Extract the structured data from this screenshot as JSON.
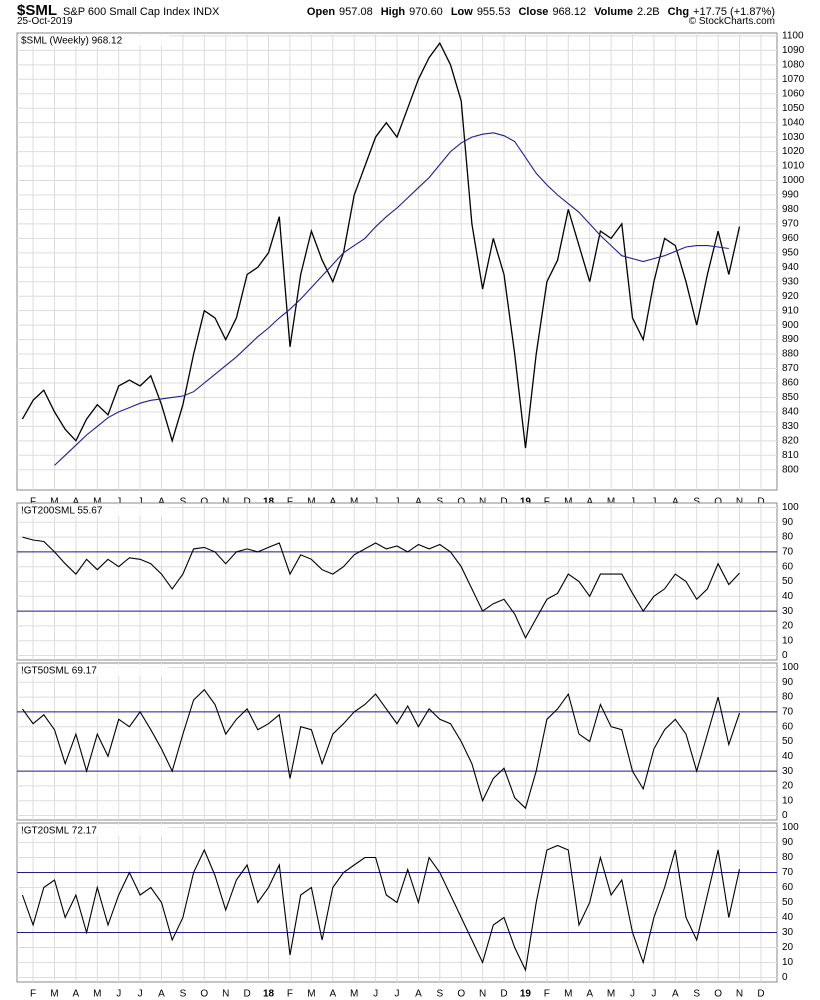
{
  "header": {
    "symbol": "$SML",
    "name": "S&P 600 Small Cap Index",
    "exchange": "INDX",
    "date": "25-Oct-2019",
    "quote": [
      {
        "label": "Open",
        "value": "957.08"
      },
      {
        "label": "High",
        "value": "970.60"
      },
      {
        "label": "Low",
        "value": "955.53"
      },
      {
        "label": "Close",
        "value": "968.12"
      },
      {
        "label": "Volume",
        "value": "2.2B"
      },
      {
        "label": "Chg",
        "value": "+17.75 (+1.87%)"
      }
    ],
    "copyright": "© StockCharts.com"
  },
  "chart_data": [
    {
      "type": "line",
      "title": "$SML (Weekly) 968.12",
      "categories": [
        null,
        "F",
        null,
        "M",
        null,
        "A",
        null,
        "M",
        null,
        "J",
        null,
        "J",
        null,
        "A",
        null,
        "S",
        null,
        "O",
        null,
        "N",
        null,
        "D",
        null,
        "18",
        null,
        "F",
        null,
        "M",
        null,
        "A",
        null,
        "M",
        null,
        "J",
        null,
        "J",
        null,
        "A",
        null,
        "S",
        null,
        "O",
        null,
        "N",
        null,
        "D",
        null,
        "19",
        null,
        "F",
        null,
        "M",
        null,
        "A",
        null,
        "M",
        null,
        "J",
        null,
        "J",
        null,
        "A",
        null,
        "S",
        null,
        "O",
        null,
        "N",
        null,
        "D",
        null
      ],
      "series": [
        {
          "color": "#000000",
          "values": [
            835,
            848,
            855,
            840,
            828,
            820,
            835,
            845,
            838,
            858,
            862,
            858,
            865,
            845,
            820,
            845,
            880,
            910,
            905,
            890,
            905,
            935,
            940,
            950,
            975,
            885,
            935,
            965,
            945,
            930,
            950,
            990,
            1010,
            1030,
            1040,
            1030,
            1050,
            1070,
            1085,
            1095,
            1080,
            1055,
            970,
            925,
            960,
            935,
            880,
            815,
            880,
            930,
            945,
            980,
            955,
            930,
            965,
            960,
            970,
            905,
            890,
            930,
            960,
            955,
            930,
            900,
            935,
            965,
            935,
            968.12,
            null,
            null,
            null
          ]
        },
        {
          "color": "#1f1f8f",
          "values": [
            null,
            null,
            null,
            803,
            810,
            817,
            824,
            830,
            836,
            840,
            843,
            846,
            848,
            849,
            850,
            851,
            854,
            860,
            866,
            872,
            878,
            885,
            892,
            898,
            905,
            911,
            918,
            926,
            934,
            942,
            950,
            955,
            960,
            968,
            975,
            981,
            988,
            995,
            1002,
            1011,
            1020,
            1026,
            1030,
            1032,
            1033,
            1031,
            1027,
            1016,
            1005,
            997,
            990,
            984,
            978,
            970,
            962,
            955,
            948,
            946,
            944,
            946,
            948,
            951,
            954,
            955,
            955,
            954,
            953,
            null,
            null,
            null,
            null
          ]
        }
      ],
      "ylim": [
        786,
        1102
      ],
      "yticks": [
        800,
        810,
        820,
        830,
        840,
        850,
        860,
        870,
        880,
        890,
        900,
        910,
        920,
        930,
        940,
        950,
        960,
        970,
        980,
        990,
        1000,
        1010,
        1020,
        1030,
        1040,
        1050,
        1060,
        1070,
        1080,
        1090,
        1100
      ],
      "grid": true
    },
    {
      "type": "line",
      "title": "!GT200SML 55.67",
      "series": [
        {
          "color": "#000000",
          "values": [
            80,
            78,
            77,
            70,
            62,
            55,
            65,
            58,
            65,
            60,
            66,
            65,
            62,
            55,
            45,
            55,
            72,
            73,
            70,
            62,
            70,
            72,
            70,
            73,
            76,
            55,
            68,
            65,
            58,
            55,
            60,
            68,
            72,
            76,
            72,
            74,
            70,
            75,
            72,
            75,
            70,
            60,
            45,
            30,
            35,
            38,
            28,
            12,
            25,
            38,
            42,
            55,
            50,
            40,
            55,
            55,
            55,
            42,
            30,
            40,
            45,
            55,
            50,
            38,
            45,
            62,
            48,
            55.67,
            null,
            null,
            null
          ]
        }
      ],
      "ylim": [
        -3,
        103
      ],
      "yticks": [
        0,
        10,
        20,
        30,
        40,
        50,
        60,
        70,
        80,
        90,
        100
      ],
      "reference_lines": [
        70,
        30
      ],
      "grid": true
    },
    {
      "type": "line",
      "title": "!GT50SML 69.17",
      "series": [
        {
          "color": "#000000",
          "values": [
            72,
            62,
            68,
            58,
            35,
            55,
            30,
            55,
            40,
            65,
            60,
            70,
            58,
            45,
            30,
            55,
            78,
            85,
            75,
            55,
            65,
            72,
            58,
            62,
            68,
            25,
            60,
            58,
            35,
            55,
            62,
            70,
            75,
            82,
            72,
            62,
            74,
            60,
            72,
            65,
            62,
            50,
            35,
            10,
            25,
            32,
            12,
            5,
            30,
            65,
            72,
            82,
            55,
            50,
            75,
            60,
            58,
            30,
            18,
            45,
            58,
            65,
            55,
            30,
            55,
            80,
            48,
            69.17,
            null,
            null,
            null
          ]
        }
      ],
      "ylim": [
        -3,
        103
      ],
      "yticks": [
        0,
        10,
        20,
        30,
        40,
        50,
        60,
        70,
        80,
        90,
        100
      ],
      "reference_lines": [
        70,
        30
      ],
      "grid": true
    },
    {
      "type": "line",
      "title": "!GT20SML 72.17",
      "categories": [
        null,
        "F",
        null,
        "M",
        null,
        "A",
        null,
        "M",
        null,
        "J",
        null,
        "J",
        null,
        "A",
        null,
        "S",
        null,
        "O",
        null,
        "N",
        null,
        "D",
        null,
        "18",
        null,
        "F",
        null,
        "M",
        null,
        "A",
        null,
        "M",
        null,
        "J",
        null,
        "J",
        null,
        "A",
        null,
        "S",
        null,
        "O",
        null,
        "N",
        null,
        "D",
        null,
        "19",
        null,
        "F",
        null,
        "M",
        null,
        "A",
        null,
        "M",
        null,
        "J",
        null,
        "J",
        null,
        "A",
        null,
        "S",
        null,
        "O",
        null,
        "N",
        null,
        "D",
        null
      ],
      "series": [
        {
          "color": "#000000",
          "values": [
            55,
            35,
            60,
            65,
            40,
            55,
            30,
            60,
            35,
            55,
            70,
            55,
            60,
            50,
            25,
            40,
            70,
            85,
            68,
            45,
            65,
            75,
            50,
            60,
            75,
            15,
            55,
            60,
            25,
            60,
            70,
            75,
            80,
            80,
            55,
            50,
            72,
            50,
            80,
            70,
            55,
            40,
            25,
            10,
            35,
            40,
            20,
            5,
            50,
            85,
            88,
            85,
            35,
            50,
            80,
            55,
            65,
            30,
            10,
            40,
            60,
            85,
            40,
            25,
            55,
            85,
            40,
            72.17,
            null,
            null,
            null
          ]
        }
      ],
      "ylim": [
        -3,
        103
      ],
      "yticks": [
        0,
        10,
        20,
        30,
        40,
        50,
        60,
        70,
        80,
        90,
        100
      ],
      "reference_lines": [
        70,
        30
      ],
      "grid": true
    }
  ]
}
